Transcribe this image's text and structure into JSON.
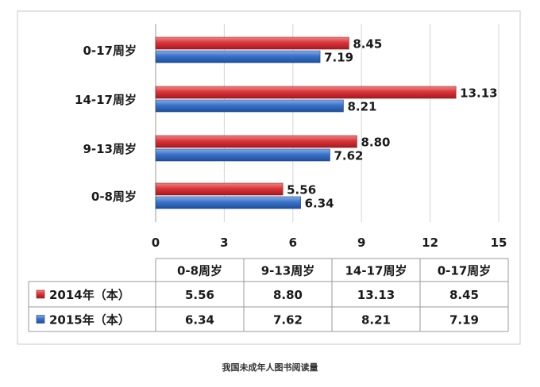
{
  "chart_data": {
    "type": "bar",
    "orientation": "horizontal",
    "categories": [
      "0-17周岁",
      "14-17周岁",
      "9-13周岁",
      "0-8周岁"
    ],
    "series": [
      {
        "name": "2014年（本）",
        "color": "#d9353a",
        "values": [
          8.45,
          13.13,
          8.8,
          5.56
        ],
        "labels": [
          "8.45",
          "13.13",
          "8.80",
          "5.56"
        ]
      },
      {
        "name": "2015年（本）",
        "color": "#3a72c9",
        "values": [
          7.19,
          8.21,
          7.62,
          6.34
        ],
        "labels": [
          "7.19",
          "8.21",
          "7.62",
          "6.34"
        ]
      }
    ],
    "xlim": [
      0,
      15
    ],
    "xticks": [
      "0",
      "3",
      "6",
      "9",
      "12",
      "15"
    ],
    "grid": true,
    "data_table": {
      "columns": [
        "0-8周岁",
        "9-13周岁",
        "14-17周岁",
        "0-17周岁"
      ],
      "rows": [
        {
          "name": "2014年（本）",
          "color": "#d9353a",
          "values": [
            "5.56",
            "8.80",
            "13.13",
            "8.45"
          ]
        },
        {
          "name": "2015年（本）",
          "color": "#3a72c9",
          "values": [
            "6.34",
            "7.62",
            "8.21",
            "7.19"
          ]
        }
      ]
    }
  },
  "caption": "我国未成年人图书阅读量"
}
